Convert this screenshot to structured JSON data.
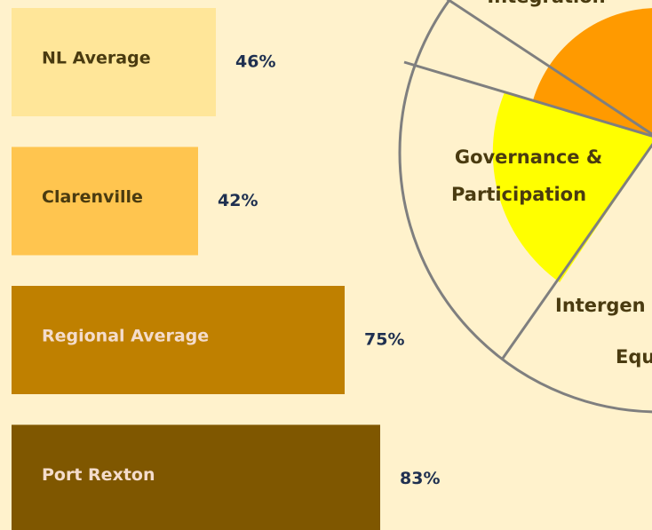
{
  "chart_data": {
    "type": "bar",
    "orientation": "horizontal",
    "categories": [
      "NL Average",
      "Clarenville",
      "Regional Average",
      "Port Rexton"
    ],
    "values": [
      46,
      42,
      75,
      83
    ],
    "value_labels": [
      "46%",
      "42%",
      "75%",
      "83%"
    ],
    "colors": [
      "#ffe699",
      "#ffc54f",
      "#bf8000",
      "#7f5700"
    ],
    "label_colors": [
      "#4a3b10",
      "#4a3b10",
      "#f4dccb",
      "#f4dccb"
    ]
  },
  "diagram": {
    "labels": [
      "Integration",
      "Governance &",
      "Participation",
      "Intergen",
      "Equ"
    ]
  }
}
